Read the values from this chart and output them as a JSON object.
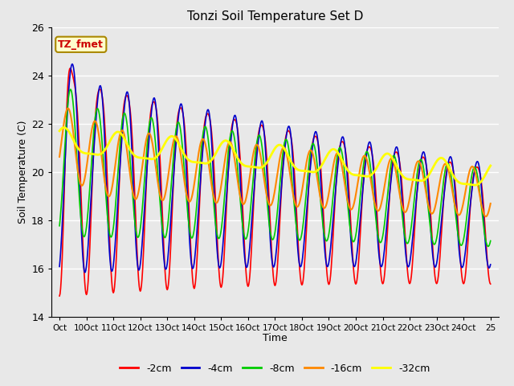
{
  "title": "Tonzi Soil Temperature Set D",
  "xlabel": "Time",
  "ylabel": "Soil Temperature (C)",
  "ylim": [
    14,
    26
  ],
  "xlim": [
    -0.3,
    16.3
  ],
  "fig_bg": "#e8e8e8",
  "plot_bg": "#e8e8e8",
  "series": [
    {
      "label": "-2cm",
      "color": "#ff0000",
      "lw": 1.2
    },
    {
      "label": "-4cm",
      "color": "#0000cc",
      "lw": 1.2
    },
    {
      "label": "-8cm",
      "color": "#00cc00",
      "lw": 1.2
    },
    {
      "label": "-16cm",
      "color": "#ff8800",
      "lw": 1.5
    },
    {
      "label": "-32cm",
      "color": "#ffff00",
      "lw": 2.0
    }
  ],
  "annotation_text": "TZ_fmet",
  "annotation_color": "#cc0000",
  "annotation_bg": "#ffffcc",
  "annotation_border": "#aa8800",
  "xtick_labels": [
    "Oct",
    "10Oct",
    "11Oct",
    "12Oct",
    "13Oct",
    "14Oct",
    "15Oct",
    "16Oct",
    "17Oct",
    "18Oct",
    "19Oct",
    "20Oct",
    "21Oct",
    "22Oct",
    "23Oct",
    "24Oct",
    "25"
  ],
  "xtick_positions": [
    0,
    1,
    2,
    3,
    4,
    5,
    6,
    7,
    8,
    9,
    10,
    11,
    12,
    13,
    14,
    15,
    16
  ],
  "ytick_positions": [
    14,
    16,
    18,
    20,
    22,
    24,
    26
  ]
}
